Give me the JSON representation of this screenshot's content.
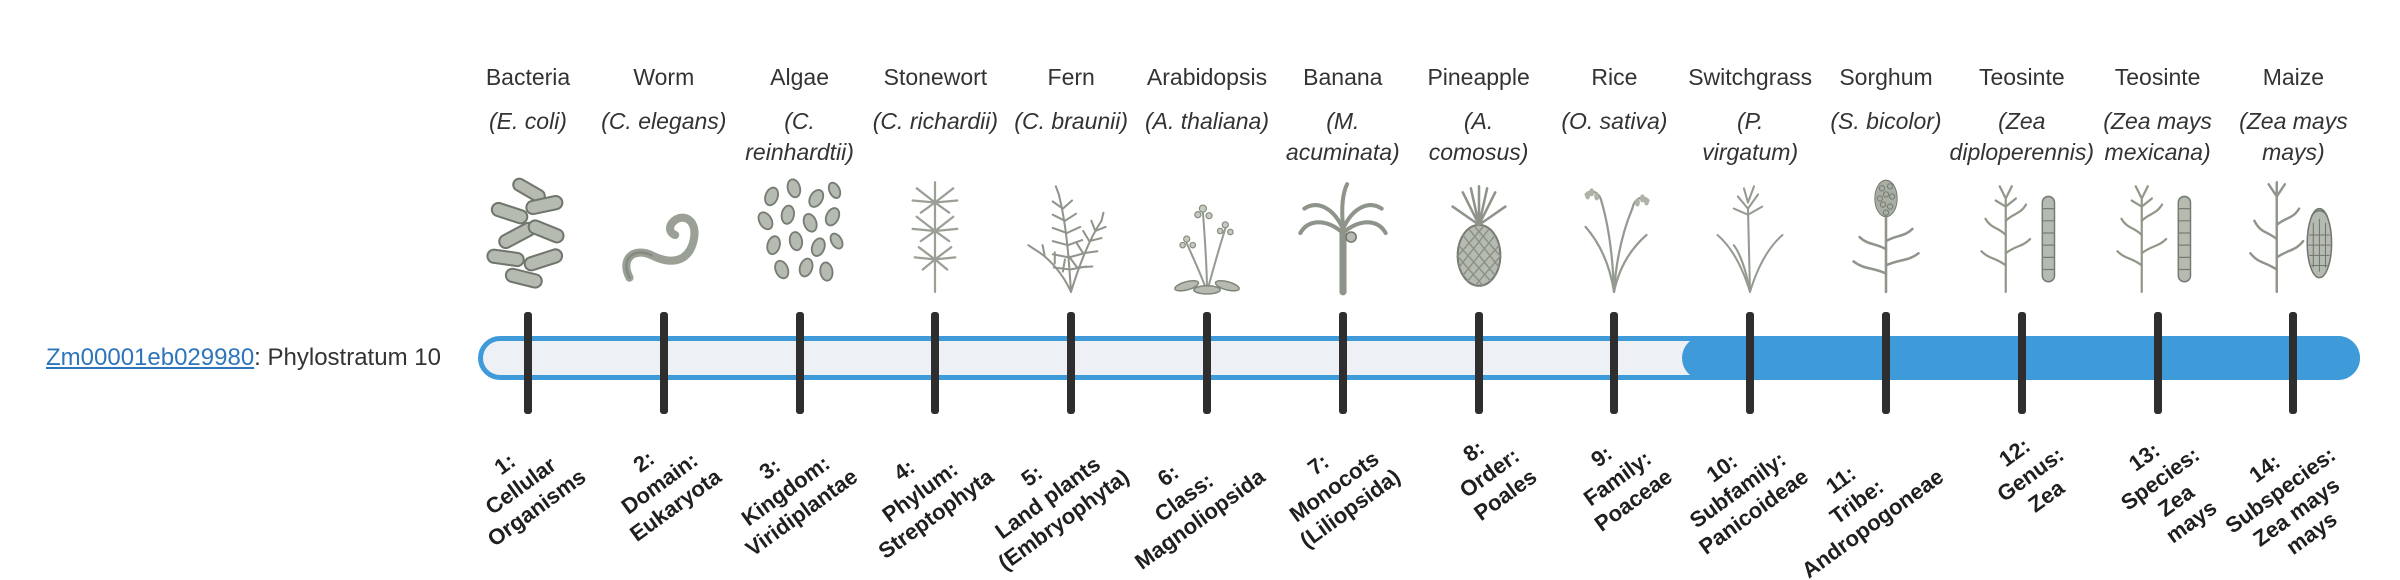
{
  "gene": {
    "id": "Zm00001eb029980",
    "suffix": ": Phylostratum 10",
    "phylostratum": 10
  },
  "colors": {
    "accent_blue": "#3f9ad9",
    "track_bg": "#edf1f6",
    "tick": "#2e2e2e",
    "link": "#2e75bb",
    "text": "#333333"
  },
  "chart_data": {
    "type": "table",
    "title": "Gene phylostratigraphy track",
    "gene_label": "Zm00001eb029980: Phylostratum 10",
    "highlighted_strata": [
      10,
      11,
      12,
      13,
      14
    ],
    "strata": [
      {
        "number": 1,
        "label": "1: Cellular Organisms",
        "organism": "Bacteria",
        "scientific_name": "(E. coli)"
      },
      {
        "number": 2,
        "label": "2: Domain: Eukaryota",
        "organism": "Worm",
        "scientific_name": "(C. elegans)"
      },
      {
        "number": 3,
        "label": "3: Kingdom: Viridiplantae",
        "organism": "Algae",
        "scientific_name": "(C. reinhardtii)"
      },
      {
        "number": 4,
        "label": "4: Phylum: Streptophyta",
        "organism": "Stonewort",
        "scientific_name": "(C. richardii)"
      },
      {
        "number": 5,
        "label": "5: Land plants (Embryophyta)",
        "organism": "Fern",
        "scientific_name": "(C. braunii)"
      },
      {
        "number": 6,
        "label": "6: Class: Magnoliopsida",
        "organism": "Arabidopsis",
        "scientific_name": "(A. thaliana)"
      },
      {
        "number": 7,
        "label": "7: Monocots (Liliopsida)",
        "organism": "Banana",
        "scientific_name": "(M. acuminata)"
      },
      {
        "number": 8,
        "label": "8: Order: Poales",
        "organism": "Pineapple",
        "scientific_name": "(A. comosus)"
      },
      {
        "number": 9,
        "label": "9: Family: Poaceae",
        "organism": "Rice",
        "scientific_name": "(O. sativa)"
      },
      {
        "number": 10,
        "label": "10: Subfamily: Panicoideae",
        "organism": "Switchgrass",
        "scientific_name": "(P. virgatum)"
      },
      {
        "number": 11,
        "label": "11: Tribe: Andropogoneae",
        "organism": "Sorghum",
        "scientific_name": "(S. bicolor)"
      },
      {
        "number": 12,
        "label": "12: Genus: Zea",
        "organism": "Teosinte",
        "scientific_name": "(Zea diploperennis)"
      },
      {
        "number": 13,
        "label": "13: Species: Zea mays",
        "organism": "Teosinte",
        "scientific_name": "(Zea mays mexicana)"
      },
      {
        "number": 14,
        "label": "14: Subspecies: Zea mays mays",
        "organism": "Maize",
        "scientific_name": "(Zea mays mays)"
      }
    ]
  },
  "columns": [
    {
      "name": "Bacteria",
      "sci_lines": [
        "(E. coli)"
      ],
      "icon": "bacteria-illustration",
      "stratum_lines": [
        "1:",
        "Cellular",
        "Organisms"
      ]
    },
    {
      "name": "Worm",
      "sci_lines": [
        "(C. elegans)"
      ],
      "icon": "worm-illustration",
      "stratum_lines": [
        "2:",
        "Domain:",
        "Eukaryota"
      ]
    },
    {
      "name": "Algae",
      "sci_lines": [
        "(C.",
        "reinhardtii)"
      ],
      "icon": "algae-illustration",
      "stratum_lines": [
        "3:",
        "Kingdom:",
        "Viridiplantae"
      ]
    },
    {
      "name": "Stonewort",
      "sci_lines": [
        "(C. richardii)"
      ],
      "icon": "stonewort-illustration",
      "stratum_lines": [
        "4:",
        "Phylum:",
        "Streptophyta"
      ]
    },
    {
      "name": "Fern",
      "sci_lines": [
        "(C. braunii)"
      ],
      "icon": "fern-illustration",
      "stratum_lines": [
        "5:",
        "Land plants",
        "(Embryophyta)"
      ]
    },
    {
      "name": "Arabidopsis",
      "sci_lines": [
        "(A. thaliana)"
      ],
      "icon": "arabidopsis-illustration",
      "stratum_lines": [
        "6:",
        "Class:",
        "Magnoliopsida"
      ]
    },
    {
      "name": "Banana",
      "sci_lines": [
        "(M.",
        "acuminata)"
      ],
      "icon": "banana-illustration",
      "stratum_lines": [
        "7:",
        "Monocots",
        "(Liliopsida)"
      ]
    },
    {
      "name": "Pineapple",
      "sci_lines": [
        "(A.",
        "comosus)"
      ],
      "icon": "pineapple-illustration",
      "stratum_lines": [
        "8:",
        "Order:",
        "Poales"
      ]
    },
    {
      "name": "Rice",
      "sci_lines": [
        "(O. sativa)"
      ],
      "icon": "rice-illustration",
      "stratum_lines": [
        "9:",
        "Family:",
        "Poaceae"
      ]
    },
    {
      "name": "Switchgrass",
      "sci_lines": [
        "(P.",
        "virgatum)"
      ],
      "icon": "switchgrass-illustration",
      "stratum_lines": [
        "10:",
        "Subfamily:",
        "Panicoideae"
      ]
    },
    {
      "name": "Sorghum",
      "sci_lines": [
        "(S. bicolor)"
      ],
      "icon": "sorghum-illustration",
      "stratum_lines": [
        "11:",
        "Tribe:",
        "Andropogoneae"
      ]
    },
    {
      "name": "Teosinte",
      "sci_lines": [
        "(Zea",
        "diploperennis)"
      ],
      "icon": "teosinte-illustration",
      "stratum_lines": [
        "12:",
        "Genus:",
        "Zea"
      ]
    },
    {
      "name": "Teosinte",
      "sci_lines": [
        "(Zea mays",
        "mexicana)"
      ],
      "icon": "teosinte-illustration",
      "stratum_lines": [
        "13:",
        "Species:",
        "Zea",
        "mays"
      ]
    },
    {
      "name": "Maize",
      "sci_lines": [
        "(Zea mays",
        "mays)"
      ],
      "icon": "maize-illustration",
      "stratum_lines": [
        "14:",
        "Subspecies:",
        "Zea mays",
        "mays"
      ]
    }
  ]
}
